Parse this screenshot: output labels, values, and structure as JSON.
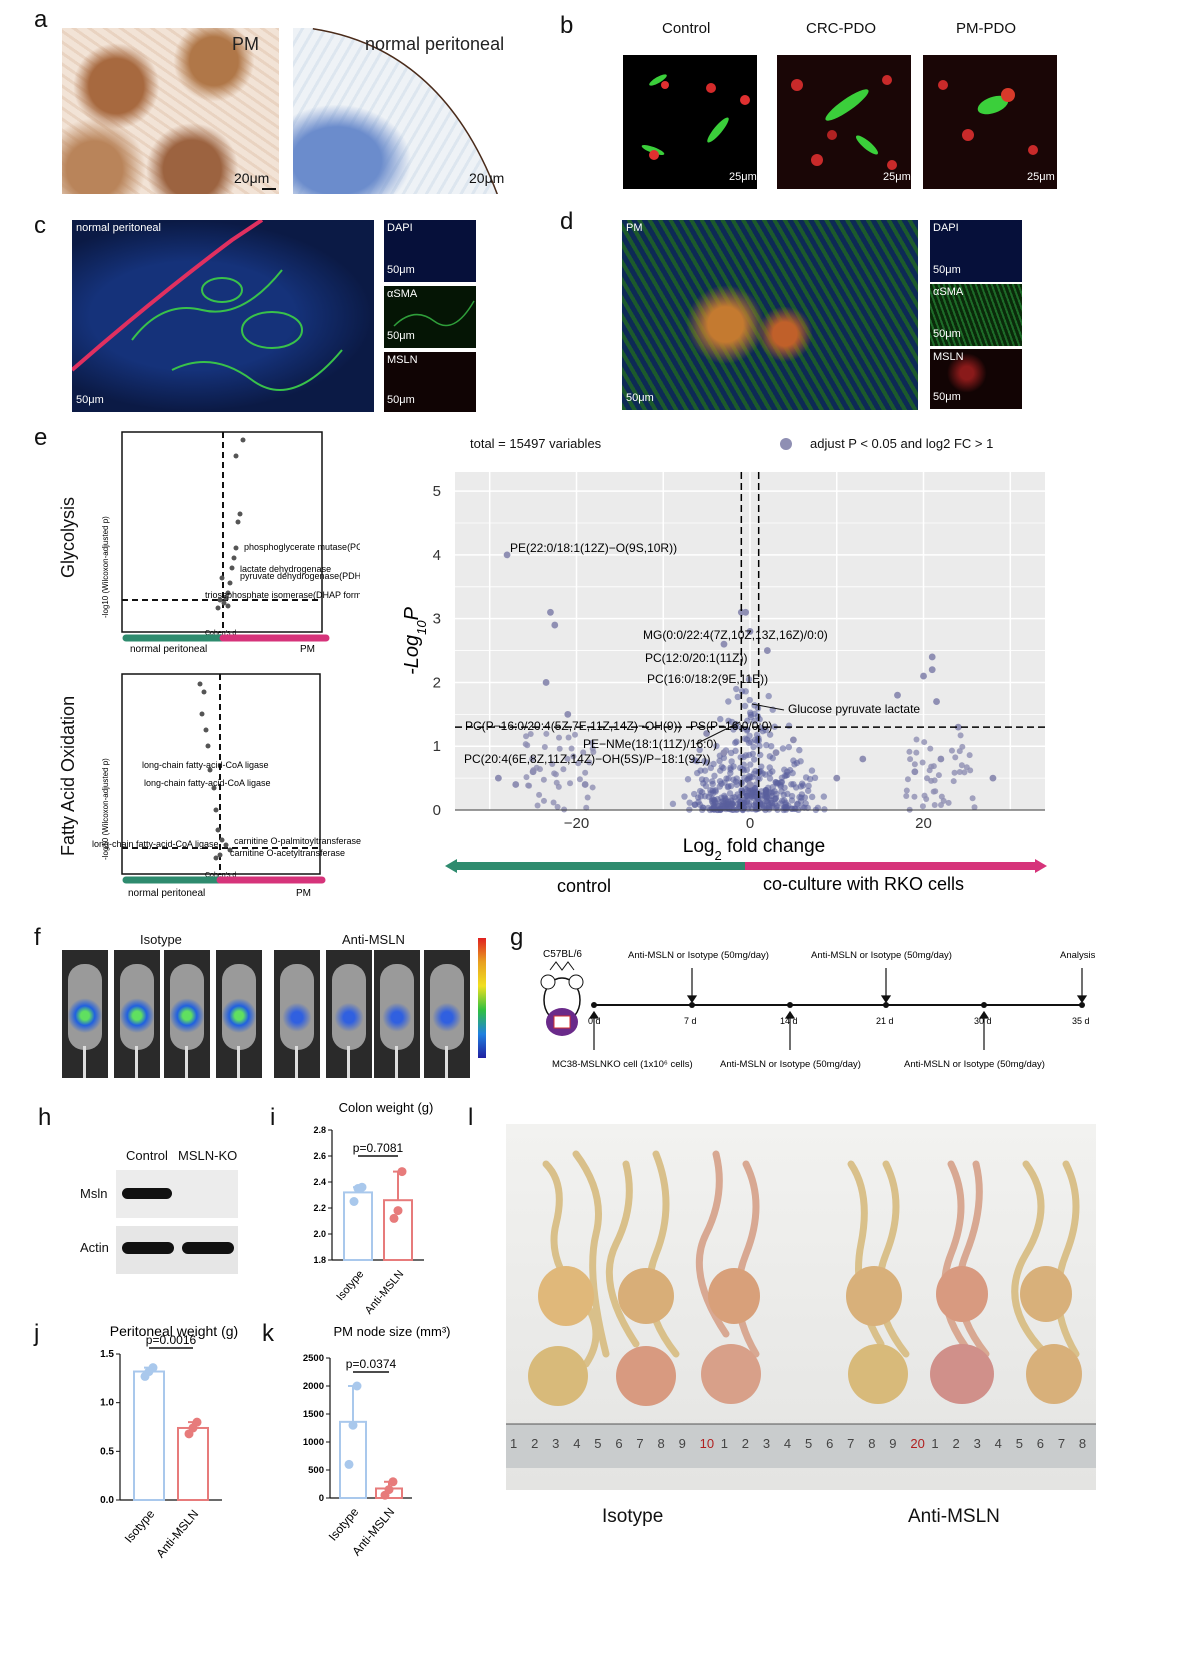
{
  "panel_letters": {
    "a": "a",
    "b": "b",
    "c": "c",
    "d": "d",
    "e": "e",
    "f": "f",
    "g": "g",
    "h": "h",
    "i": "i",
    "j": "j",
    "k": "k",
    "l": "l"
  },
  "panel_a": {
    "left_label": "PM",
    "right_label": "normal peritoneal",
    "scale": "20μm"
  },
  "panel_b": {
    "titles": [
      "Control",
      "CRC-PDO",
      "PM-PDO"
    ],
    "scale": "25μm"
  },
  "panel_c": {
    "main_label": "normal peritoneal",
    "scale": "50μm",
    "channels": [
      "DAPI",
      "αSMA",
      "MSLN"
    ]
  },
  "panel_d": {
    "main_label": "PM",
    "scale": "50μm",
    "channels": [
      "DAPI",
      "αSMA",
      "MSLN"
    ]
  },
  "panel_e_small": {
    "top": {
      "row_label": "Glycolysis",
      "ylabel": "-log10 (Wilcoxon-adjusted p)",
      "xlabel": "Cohen's d",
      "left": "normal peritoneal",
      "right": "PM",
      "annotations": [
        "phosphoglycerate mutase(PGAM)",
        "lactate dehydrogenase",
        "pyruvate dehydrogenase(PDH)",
        "triosephosphate isomerase(DHAP forming)"
      ]
    },
    "bottom": {
      "row_label": "Fatty Acid Oxidation",
      "ylabel": "-log10 (Wilcoxon-adjusted p)",
      "xlabel": "Cohen's d",
      "left": "normal peritoneal",
      "right": "PM",
      "annotations": [
        "long-chain fatty-acid-CoA ligase",
        "long-chain fatty-acid-CoA ligase",
        "long-chain fatty-acid-CoA ligase",
        "carnitine O-palmitoyltransferase",
        "carnitine O-acetyltransferase"
      ]
    }
  },
  "panel_e_volcano": {
    "total": "total = 15497 variables",
    "legend": "adjust P < 0.05 and log2 FC > 1",
    "arrow_left": "control",
    "arrow_right": "co-culture with RKO cells",
    "annotations": [
      "PE(22:0/18:1(12Z)−O(9S,10R))",
      "MG(0:0/22:4(7Z,10Z,13Z,16Z)/0:0)",
      "PC(12:0/20:1(11Z))",
      "PC(16:0/18:2(9E,11E))",
      "PC(P−16:0/20:4(5Z,7E,11Z,14Z)−OH(9))",
      "PS(P−16:0/0:0)",
      "PE−NMe(18:1(11Z)/16:0)",
      "PC(20:4(6E,8Z,11Z,14Z)−OH(5S)/P−18:1(9Z))",
      "Glucose pyruvate lactate"
    ]
  },
  "panel_f": {
    "groups": [
      "Isotype",
      "Anti-MSLN"
    ]
  },
  "panel_g": {
    "strain": "C57BL/6",
    "timepoints": [
      "0 d",
      "7 d",
      "14 d",
      "21 d",
      "30 d",
      "35 d"
    ],
    "above": [
      "Anti-MSLN or Isotype (50mg/day)",
      "Anti-MSLN or Isotype (50mg/day)",
      "Analysis"
    ],
    "below": [
      "MC38-MSLNKO cell (1x10⁶ cells)",
      "Anti-MSLN or Isotype (50mg/day)",
      "Anti-MSLN or Isotype (50mg/day)"
    ]
  },
  "panel_h": {
    "columns": [
      "Control",
      "MSLN-KO"
    ],
    "rows": [
      "Msln",
      "Actin"
    ]
  },
  "panel_l": {
    "groups": [
      "Isotype",
      "Anti-MSLN"
    ],
    "ruler": [
      "1",
      "2",
      "3",
      "4",
      "5",
      "6",
      "7",
      "8",
      "9",
      "10",
      "1",
      "2",
      "3",
      "4",
      "5",
      "6",
      "7",
      "8",
      "9",
      "20",
      "1",
      "2",
      "3",
      "4",
      "5",
      "6",
      "7",
      "8"
    ]
  },
  "chart_data": [
    {
      "id": "volcano",
      "type": "scatter",
      "xlabel": "Log2 fold change",
      "ylabel": "-Log10P",
      "xlim": [
        -34,
        34
      ],
      "ylim": [
        0,
        5.3
      ],
      "xticks": [
        -20,
        0,
        20
      ],
      "yticks": [
        0,
        1,
        2,
        3,
        4,
        5
      ],
      "thresholds": {
        "x": [
          -1,
          1
        ],
        "y": 1.3
      },
      "grid": true,
      "series": [
        {
          "values": [
            [
              -28,
              4
            ],
            [
              -23,
              3.1
            ],
            [
              -22.5,
              2.9
            ],
            [
              -23.5,
              2
            ],
            [
              -21,
              1.5
            ],
            [
              -1,
              3.1
            ],
            [
              -0.5,
              3.1
            ],
            [
              -3,
              2.6
            ],
            [
              2,
              2.5
            ],
            [
              0,
              2.8
            ],
            [
              21,
              2.4
            ],
            [
              21,
              2.2
            ],
            [
              20,
              2.1
            ],
            [
              17,
              1.8
            ],
            [
              21.5,
              1.7
            ],
            [
              24,
              1.3
            ],
            [
              28,
              0.5
            ],
            [
              -29,
              0.5
            ],
            [
              -27,
              0.4
            ],
            [
              -25,
              0.6
            ],
            [
              0,
              0.4
            ],
            [
              3,
              0.9
            ],
            [
              -3,
              0.9
            ],
            [
              5,
              1.1
            ],
            [
              -5,
              1.2
            ],
            [
              10,
              0.5
            ],
            [
              13,
              0.8
            ],
            [
              19,
              0.6
            ],
            [
              22,
              0.8
            ],
            [
              -19,
              0.4
            ]
          ]
        }
      ]
    },
    {
      "id": "i",
      "type": "bar",
      "title": "Colon weight (g)",
      "categories": [
        "Isotype",
        "Anti-MSLN"
      ],
      "values": [
        2.32,
        2.26
      ],
      "points": [
        [
          2.25,
          2.35,
          2.36
        ],
        [
          2.12,
          2.18,
          2.48
        ]
      ],
      "ylim": [
        1.8,
        2.8
      ],
      "yticks": [
        1.8,
        2.0,
        2.2,
        2.4,
        2.6,
        2.8
      ],
      "pvalue": "p=0.7081"
    },
    {
      "id": "j",
      "type": "bar",
      "title": "Peritoneal weight (g)",
      "categories": [
        "Isotype",
        "Anti-MSLN"
      ],
      "values": [
        1.32,
        0.74
      ],
      "points": [
        [
          1.27,
          1.32,
          1.36
        ],
        [
          0.68,
          0.74,
          0.8
        ]
      ],
      "ylim": [
        0,
        1.5
      ],
      "yticks": [
        0.0,
        0.5,
        1.0,
        1.5
      ],
      "pvalue": "p=0.0016"
    },
    {
      "id": "k",
      "type": "bar",
      "title": "PM node size (mm³)",
      "categories": [
        "Isotype",
        "Anti-MSLN"
      ],
      "values": [
        1360,
        170
      ],
      "points": [
        [
          600,
          1300,
          2000
        ],
        [
          50,
          150,
          290
        ]
      ],
      "ylim": [
        0,
        2500
      ],
      "yticks": [
        0,
        500,
        1000,
        1500,
        2000,
        2500
      ],
      "pvalue": "p=0.0374"
    }
  ],
  "colors": {
    "green_arrow": "#2e8b6e",
    "pink_arrow": "#d6337a",
    "bar_blue": "#a9c8ec",
    "bar_red": "#e77b7b",
    "volcano_point": "#8f8fb3",
    "volcano_dense": "#4a4f8c"
  }
}
